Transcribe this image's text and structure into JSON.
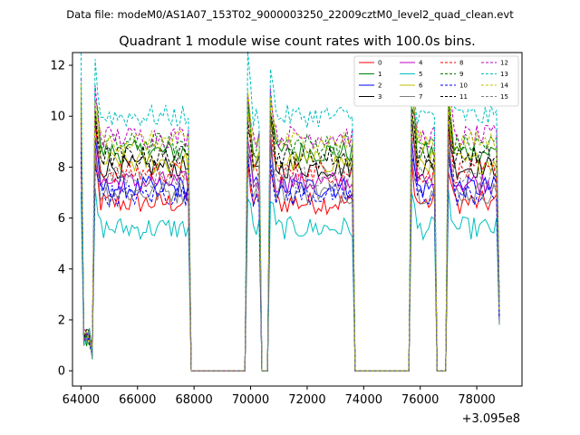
{
  "header": {
    "data_file": "Data file: modeM0/AS1A07_153T02_9000003250_22009cztM0_level2_quad_clean.evt"
  },
  "chart_data": {
    "type": "line",
    "title": "Quadrant 1 module wise count rates with 100.0s bins.",
    "xlabel": "",
    "ylabel": "",
    "x_offset_label": "+3.095e8",
    "xlim": [
      63700,
      79600
    ],
    "ylim": [
      -0.6,
      12.5
    ],
    "x_ticks": [
      64000,
      66000,
      68000,
      70000,
      72000,
      74000,
      76000,
      78000
    ],
    "x_tick_labels": [
      "64000",
      "66000",
      "68000",
      "70000",
      "72000",
      "74000",
      "76000",
      "78000"
    ],
    "y_ticks": [
      0,
      2,
      4,
      6,
      8,
      10,
      12
    ],
    "y_tick_labels": [
      "0",
      "2",
      "4",
      "6",
      "8",
      "10",
      "12"
    ],
    "grid": false,
    "legend_position": "top-right",
    "segments": [
      {
        "start": 64000,
        "end": 64400,
        "shape": "start"
      },
      {
        "start": 64500,
        "end": 67800,
        "shape": "plateau"
      },
      {
        "start": 67900,
        "end": 69800,
        "shape": "zero"
      },
      {
        "start": 69900,
        "end": 70300,
        "shape": "plateau"
      },
      {
        "start": 70400,
        "end": 70600,
        "shape": "zero"
      },
      {
        "start": 70700,
        "end": 73600,
        "shape": "plateau"
      },
      {
        "start": 73700,
        "end": 75600,
        "shape": "zero"
      },
      {
        "start": 75700,
        "end": 76500,
        "shape": "plateau"
      },
      {
        "start": 76600,
        "end": 76900,
        "shape": "zero"
      },
      {
        "start": 77000,
        "end": 78800,
        "shape": "plateau"
      }
    ],
    "series": [
      {
        "name": "0",
        "color": "#ff0000",
        "dash": "solid",
        "level": 6.6
      },
      {
        "name": "1",
        "color": "#008000",
        "dash": "solid",
        "level": 8.6
      },
      {
        "name": "2",
        "color": "#0000ff",
        "dash": "solid",
        "level": 7.2
      },
      {
        "name": "3",
        "color": "#000000",
        "dash": "solid",
        "level": 8.0
      },
      {
        "name": "4",
        "color": "#bf00bf",
        "dash": "solid",
        "level": 7.4
      },
      {
        "name": "5",
        "color": "#00bfbf",
        "dash": "solid",
        "level": 5.6
      },
      {
        "name": "6",
        "color": "#bfbf00",
        "dash": "solid",
        "level": 8.2
      },
      {
        "name": "7",
        "color": "#808080",
        "dash": "solid",
        "level": 7.0
      },
      {
        "name": "8",
        "color": "#ff0000",
        "dash": "dashed",
        "level": 7.8
      },
      {
        "name": "9",
        "color": "#008000",
        "dash": "dashed",
        "level": 8.9
      },
      {
        "name": "10",
        "color": "#0000ff",
        "dash": "dashed",
        "level": 6.9
      },
      {
        "name": "11",
        "color": "#000000",
        "dash": "dashed",
        "level": 8.4
      },
      {
        "name": "12",
        "color": "#bf00bf",
        "dash": "dashed",
        "level": 9.2
      },
      {
        "name": "13",
        "color": "#00bfbf",
        "dash": "dashed",
        "level": 10.0
      },
      {
        "name": "14",
        "color": "#bfbf00",
        "dash": "dashed",
        "level": 9.0
      },
      {
        "name": "15",
        "color": "#808080",
        "dash": "dashed",
        "level": 7.6
      }
    ]
  }
}
